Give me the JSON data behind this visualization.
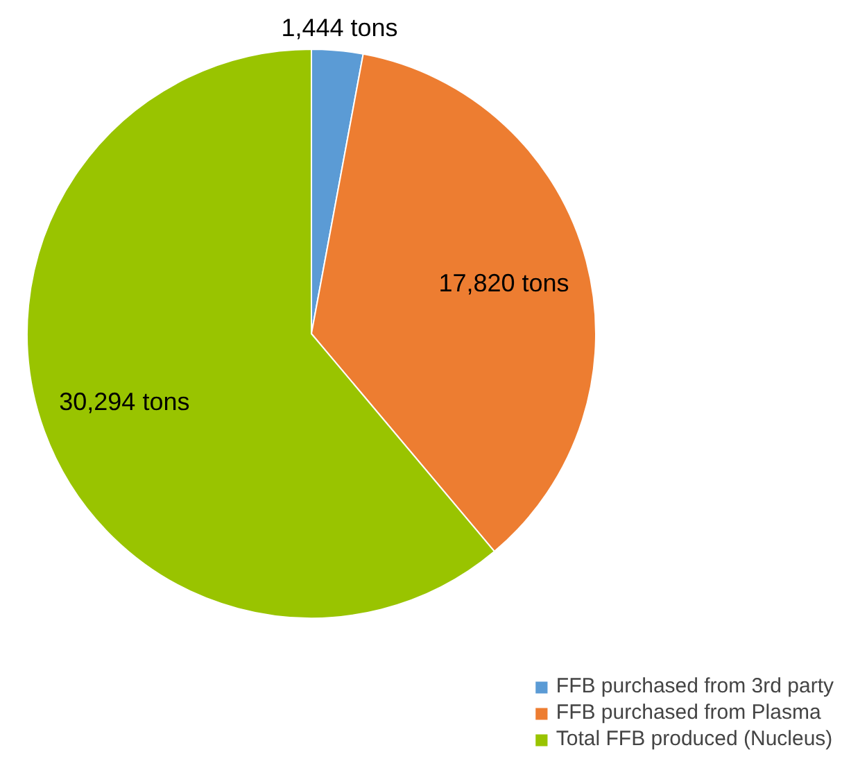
{
  "chart_data": {
    "type": "pie",
    "categories": [
      "FFB purchased from 3rd party",
      "FFB purchased from Plasma",
      "Total FFB produced (Nucleus)"
    ],
    "values": [
      1444,
      17820,
      30294
    ],
    "colors": [
      "#5b9bd5",
      "#ed7d31",
      "#99c400"
    ],
    "value_labels": [
      "1,444 tons",
      "17,820 tons",
      "30,294 tons"
    ],
    "legend": "bottom right"
  }
}
